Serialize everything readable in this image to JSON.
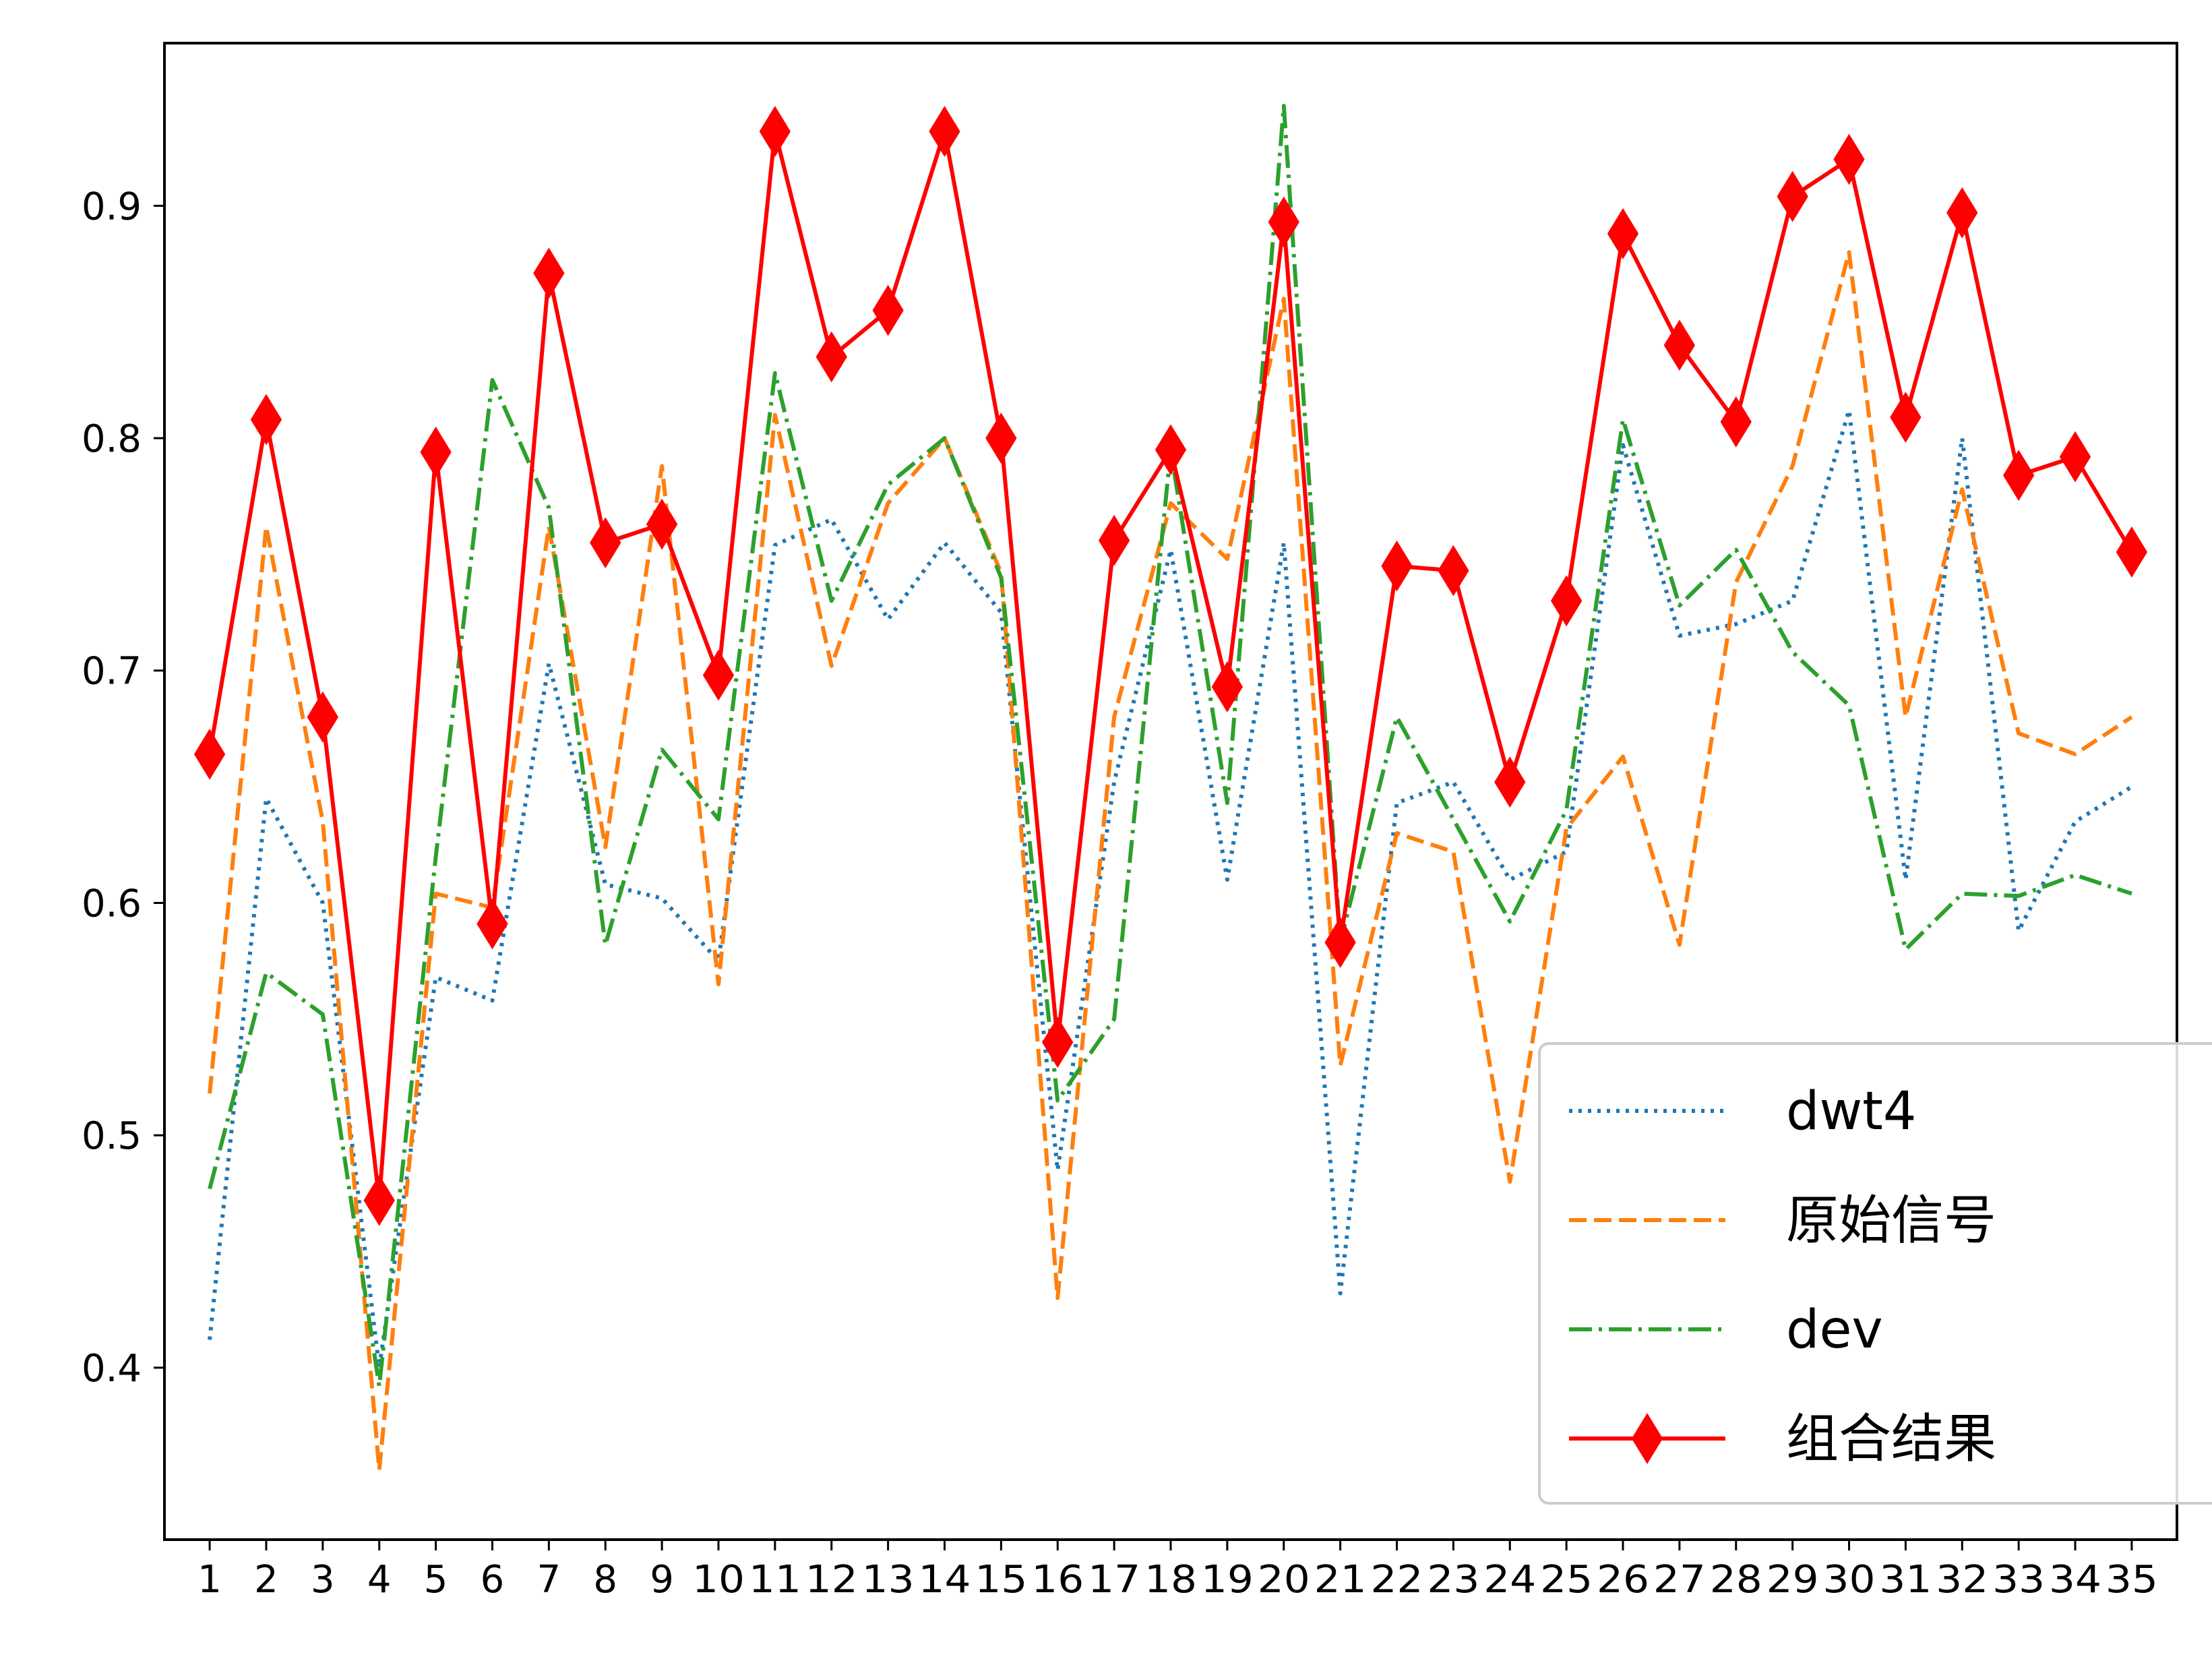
{
  "chart_data": {
    "type": "line",
    "title": "",
    "xlabel": "",
    "ylabel": "",
    "x": [
      1,
      2,
      3,
      4,
      5,
      6,
      7,
      8,
      9,
      10,
      11,
      12,
      13,
      14,
      15,
      16,
      17,
      18,
      19,
      20,
      21,
      22,
      23,
      24,
      25,
      26,
      27,
      28,
      29,
      30,
      31,
      32,
      33,
      34,
      35
    ],
    "x_tick_labels": [
      "1",
      "2",
      "3",
      "4",
      "5",
      "6",
      "7",
      "8",
      "9",
      "10",
      "11",
      "12",
      "13",
      "14",
      "15",
      "16",
      "17",
      "18",
      "19",
      "20",
      "21",
      "22",
      "23",
      "24",
      "25",
      "26",
      "27",
      "28",
      "29",
      "30",
      "31",
      "32",
      "33",
      "34",
      "35"
    ],
    "ylim": [
      0.326,
      0.97
    ],
    "y_ticks": [
      0.4,
      0.5,
      0.6,
      0.7,
      0.8,
      0.9
    ],
    "y_tick_labels": [
      "0.4",
      "0.5",
      "0.6",
      "0.7",
      "0.8",
      "0.9"
    ],
    "grid": false,
    "legend_position": "lower-right",
    "series": [
      {
        "name": "dwt4",
        "color": "#1f77b4",
        "style": "dotted",
        "values": [
          0.412,
          0.645,
          0.6,
          0.4,
          0.568,
          0.558,
          0.703,
          0.608,
          0.602,
          0.575,
          0.754,
          0.765,
          0.722,
          0.755,
          0.725,
          0.485,
          0.652,
          0.752,
          0.61,
          0.755,
          0.432,
          0.643,
          0.652,
          0.61,
          0.622,
          0.797,
          0.715,
          0.72,
          0.73,
          0.812,
          0.61,
          0.8,
          0.588,
          0.635,
          0.65
        ]
      },
      {
        "name": "原始信号",
        "color": "#ff7f0e",
        "style": "dashed",
        "values": [
          0.518,
          0.762,
          0.635,
          0.356,
          0.604,
          0.598,
          0.762,
          0.624,
          0.788,
          0.565,
          0.81,
          0.702,
          0.772,
          0.8,
          0.742,
          0.43,
          0.68,
          0.772,
          0.748,
          0.86,
          0.53,
          0.63,
          0.622,
          0.48,
          0.632,
          0.663,
          0.582,
          0.738,
          0.788,
          0.88,
          0.68,
          0.778,
          0.673,
          0.664,
          0.68
        ]
      },
      {
        "name": "dev",
        "color": "#2ca02c",
        "style": "dashdot",
        "values": [
          0.477,
          0.57,
          0.552,
          0.392,
          0.62,
          0.825,
          0.77,
          0.582,
          0.666,
          0.636,
          0.828,
          0.73,
          0.78,
          0.8,
          0.74,
          0.515,
          0.55,
          0.795,
          0.643,
          0.943,
          0.583,
          0.68,
          0.636,
          0.592,
          0.64,
          0.808,
          0.728,
          0.752,
          0.708,
          0.685,
          0.58,
          0.604,
          0.603,
          0.612,
          0.604
        ]
      },
      {
        "name": "组合结果",
        "color": "#ff0000",
        "style": "solid-diamond",
        "values": [
          0.664,
          0.808,
          0.68,
          0.472,
          0.794,
          0.591,
          0.871,
          0.755,
          0.763,
          0.698,
          0.932,
          0.835,
          0.855,
          0.932,
          0.8,
          0.54,
          0.756,
          0.795,
          0.693,
          0.893,
          0.583,
          0.745,
          0.743,
          0.652,
          0.73,
          0.888,
          0.84,
          0.807,
          0.904,
          0.92,
          0.809,
          0.897,
          0.784,
          0.792,
          0.751
        ]
      }
    ]
  }
}
